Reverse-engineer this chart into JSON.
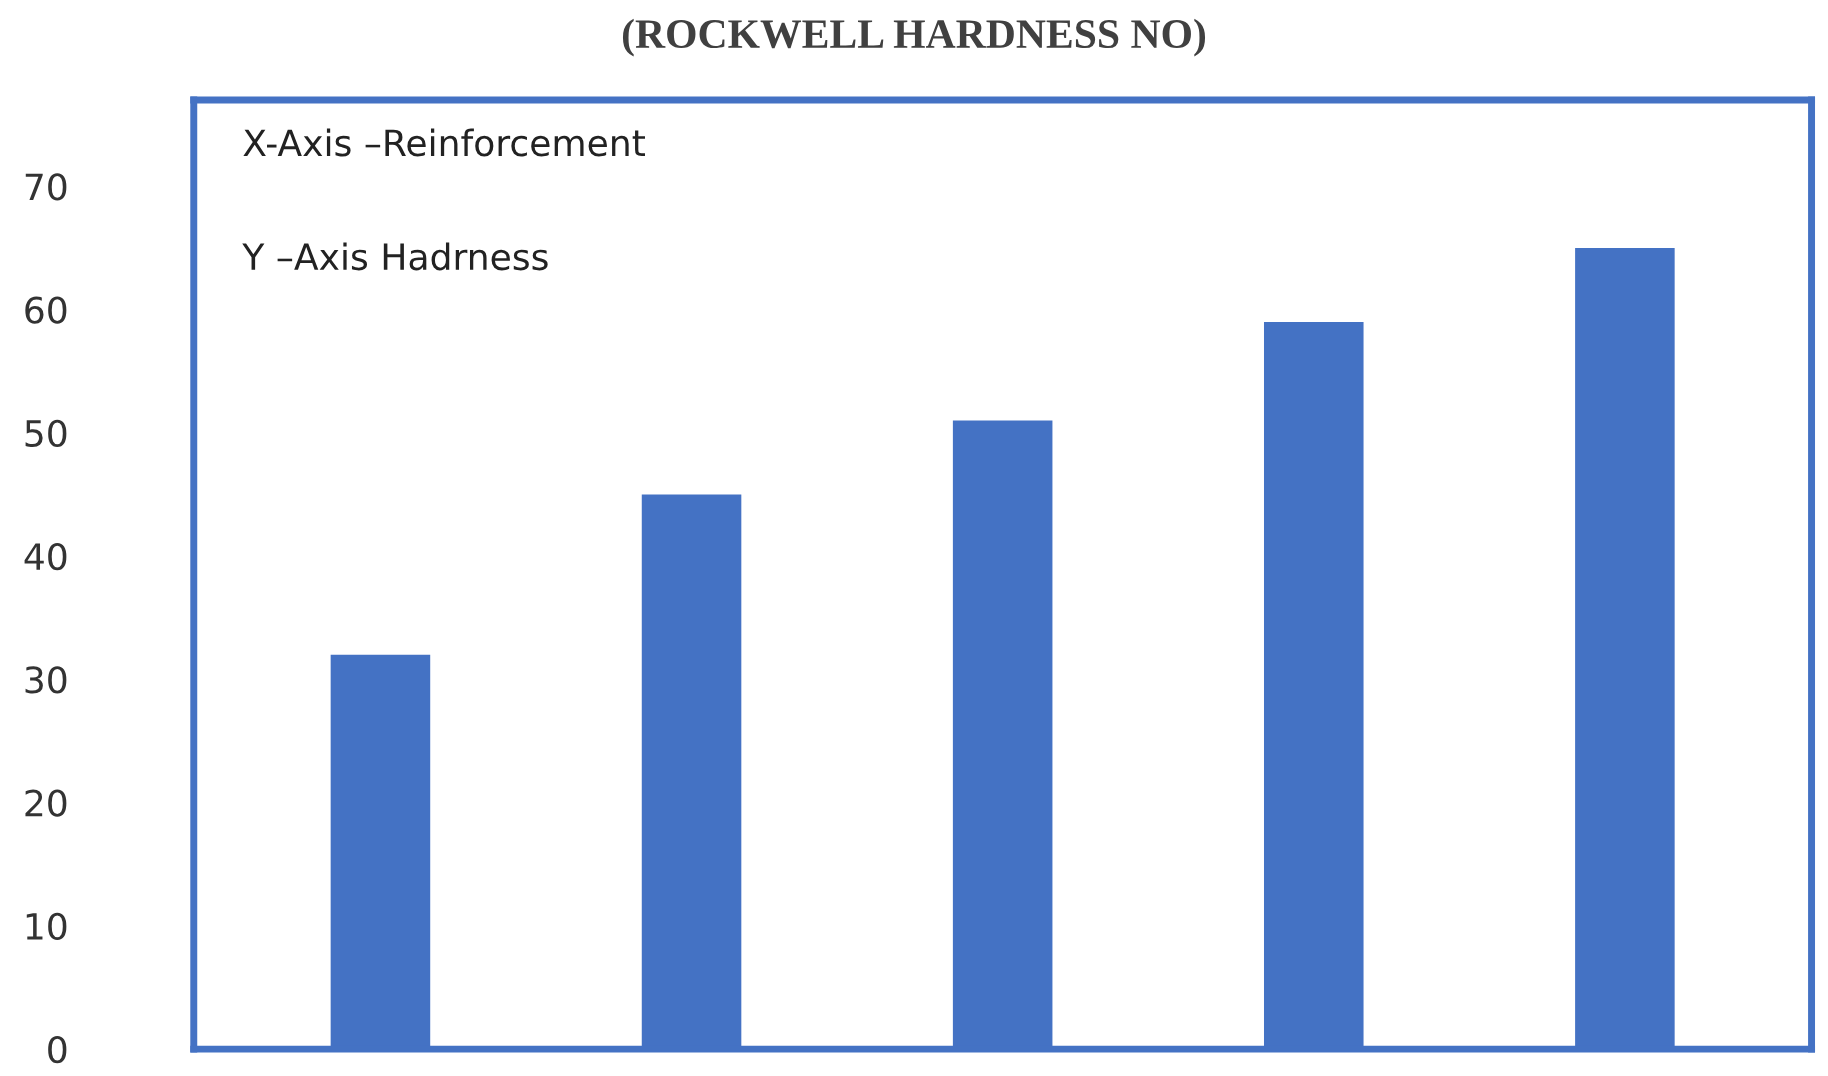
{
  "chart_data": {
    "type": "bar",
    "title": "(ROCKWELL HARDNESS NO)",
    "categories": [
      null,
      null,
      null,
      null,
      null
    ],
    "values": [
      32,
      45,
      51,
      59,
      65
    ],
    "color": "#4472c4",
    "ylim": [
      0,
      77
    ],
    "yticks": [
      0,
      10,
      20,
      30,
      40,
      50,
      60,
      70
    ],
    "grid": false,
    "legend": false,
    "annotations": [
      "X-Axis –Reinforcement",
      "Y –Axis Hadrness"
    ]
  }
}
